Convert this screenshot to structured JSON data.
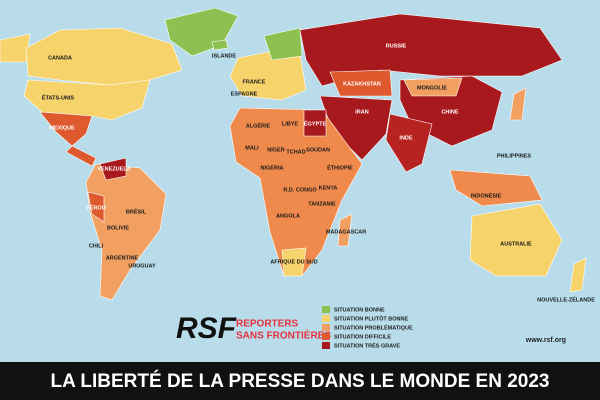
{
  "map": {
    "labels": [
      "CANADA",
      "ÉTATS-UNIS",
      "MEXIQUE",
      "VENEZUELA",
      "PÉROU",
      "BRÉSIL",
      "BOLIVIE",
      "CHILI",
      "ARGENTINE",
      "URUGUAY",
      "ISLANDE",
      "FRANCE",
      "ESPAGNE",
      "RUSSIE",
      "KAZAKHSTAN",
      "MONGOLIE",
      "CHINE",
      "INDE",
      "IRAN",
      "ALGÉRIE",
      "LIBYE",
      "ÉGYPTE",
      "MALI",
      "NIGER",
      "TCHAD",
      "SOUDAN",
      "ÉTHIOPIE",
      "NIGERIA",
      "R.D. CONGO",
      "ANGOLA",
      "TANZANIE",
      "KENYA",
      "MADAGASCAR",
      "AFRIQUE DU SUD",
      "PHILIPPINES",
      "INDONÉSIE",
      "AUSTRALIE",
      "NOUVELLE-ZÉLANDE"
    ]
  },
  "legend": {
    "items": [
      {
        "label": "SITUATION BONNE",
        "color": "#8cc152"
      },
      {
        "label": "SITUATION PLUTÔT BONNE",
        "color": "#f6d36b"
      },
      {
        "label": "SITUATION PROBLÉMATIQUE",
        "color": "#f1a062"
      },
      {
        "label": "SITUATION DIFFICILE",
        "color": "#de5a2e"
      },
      {
        "label": "SITUATION TRÈS GRAVE",
        "color": "#a8191e"
      }
    ]
  },
  "logo": {
    "mark": "RSF",
    "line1": "REPORTERS",
    "line2": "SANS FRONTIÈRES"
  },
  "url": "www.rsf.org",
  "footer": {
    "title": "LA LIBERTÉ DE LA PRESSE DANS LE MONDE EN 2023"
  }
}
